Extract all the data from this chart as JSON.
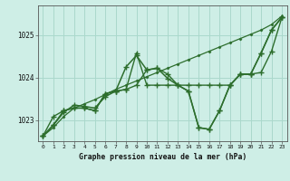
{
  "title": "Graphe pression niveau de la mer (hPa)",
  "x_labels": [
    "0",
    "1",
    "2",
    "3",
    "4",
    "5",
    "6",
    "7",
    "8",
    "9",
    "10",
    "11",
    "12",
    "13",
    "14",
    "15",
    "16",
    "17",
    "18",
    "19",
    "20",
    "21",
    "22",
    "23"
  ],
  "background_color": "#ceeee6",
  "grid_color": "#aad8cc",
  "line_color": "#2d6e2d",
  "ylim_min": 1022.5,
  "ylim_max": 1025.7,
  "yticks": [
    1023,
    1024,
    1025
  ],
  "series": [
    [
      1022.62,
      1022.82,
      1023.08,
      1023.28,
      1023.38,
      1023.48,
      1023.6,
      1023.72,
      1023.82,
      1023.92,
      1024.02,
      1024.12,
      1024.22,
      1024.32,
      1024.42,
      1024.52,
      1024.62,
      1024.72,
      1024.82,
      1024.92,
      1025.02,
      1025.12,
      1025.25,
      1025.45
    ],
    [
      1022.62,
      1022.88,
      1023.18,
      1023.35,
      1023.32,
      1023.28,
      1023.55,
      1023.68,
      1024.25,
      1024.52,
      1024.18,
      1024.22,
      1023.98,
      1023.82,
      1023.68,
      1022.82,
      1022.78,
      1023.22,
      1023.82,
      1024.08,
      1024.08,
      1024.58,
      1025.12,
      1025.42
    ],
    [
      1022.62,
      1023.08,
      1023.22,
      1023.28,
      1023.28,
      1023.22,
      1023.62,
      1023.68,
      1023.72,
      1024.58,
      1023.82,
      1023.82,
      1023.82,
      1023.82,
      1023.82,
      1023.82,
      1023.82,
      1023.82,
      1023.82,
      1024.08,
      1024.08,
      1024.12,
      1024.62,
      1025.42
    ],
    [
      1022.62,
      1022.88,
      1023.22,
      1023.28,
      1023.28,
      1023.22,
      1023.62,
      1023.68,
      1023.72,
      1023.82,
      1024.18,
      1024.22,
      1024.08,
      1023.82,
      1023.68,
      1022.82,
      1022.78,
      1023.22,
      1023.82,
      1024.08,
      1024.08,
      1024.58,
      1025.12,
      1025.42
    ]
  ]
}
